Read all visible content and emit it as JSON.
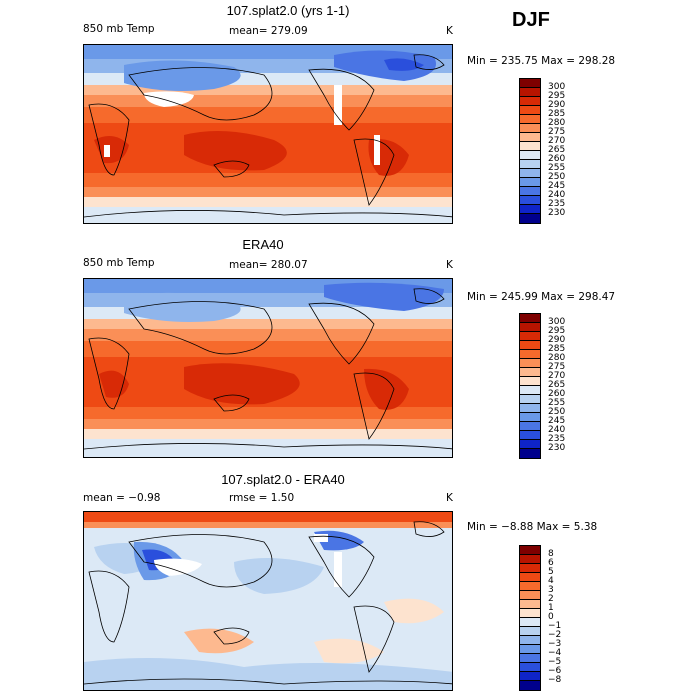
{
  "season": "DJF",
  "panels": [
    {
      "title": "107.splat2.0 (yrs 1-1)",
      "left_label": "850 mb Temp",
      "center_label": "mean= 279.09",
      "units": "K",
      "stats": "Min = 235.75 Max = 298.28",
      "colorbar_labels": [
        "300",
        "295",
        "290",
        "285",
        "280",
        "275",
        "270",
        "265",
        "260",
        "255",
        "250",
        "245",
        "240",
        "235",
        "230"
      ],
      "colorbar_colors": [
        "#7e0000",
        "#b71400",
        "#d82a06",
        "#ee4a14",
        "#f66a2c",
        "#fa8f57",
        "#fdb98f",
        "#fde3cf",
        "#dce9f6",
        "#b8d2f0",
        "#8fb5ec",
        "#6a99e8",
        "#4a75e4",
        "#2a4fdc",
        "#0f24c8",
        "#00008c"
      ]
    },
    {
      "title": "ERA40",
      "left_label": "850 mb Temp",
      "center_label": "mean= 280.07",
      "units": "K",
      "stats": "Min = 245.99 Max = 298.47",
      "colorbar_labels": [
        "300",
        "295",
        "290",
        "285",
        "280",
        "275",
        "270",
        "265",
        "260",
        "255",
        "250",
        "245",
        "240",
        "235",
        "230"
      ],
      "colorbar_colors": [
        "#7e0000",
        "#b71400",
        "#d82a06",
        "#ee4a14",
        "#f66a2c",
        "#fa8f57",
        "#fdb98f",
        "#fde3cf",
        "#dce9f6",
        "#b8d2f0",
        "#8fb5ec",
        "#6a99e8",
        "#4a75e4",
        "#2a4fdc",
        "#0f24c8",
        "#00008c"
      ]
    },
    {
      "title": "107.splat2.0 - ERA40",
      "left_label": "mean =  −0.98",
      "center_label": "rmse =   1.50",
      "units": "K",
      "stats": "Min =  −8.88 Max =   5.38",
      "colorbar_labels": [
        "8",
        "6",
        "5",
        "4",
        "3",
        "2",
        "1",
        "0",
        "−1",
        "−2",
        "−3",
        "−4",
        "−5",
        "−6",
        "−8"
      ],
      "colorbar_colors": [
        "#7e0000",
        "#b71400",
        "#d82a06",
        "#ee4a14",
        "#f66a2c",
        "#fa8f57",
        "#fdb98f",
        "#fde3cf",
        "#dce9f6",
        "#b8d2f0",
        "#8fb5ec",
        "#6a99e8",
        "#4a75e4",
        "#2a4fdc",
        "#0f24c8",
        "#00008c"
      ]
    }
  ]
}
